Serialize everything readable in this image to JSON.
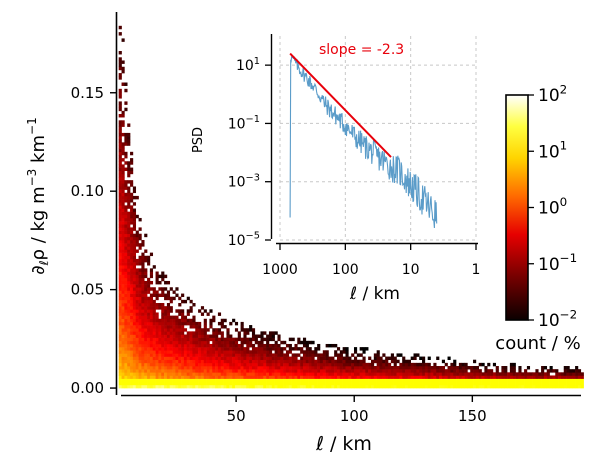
{
  "chart_data": [
    {
      "type": "heatmap",
      "description_note": "2D histogram of density gradient versus length scale",
      "xlabel": "ℓ / km",
      "ylabel_parts": {
        "main": "∂",
        "sub": "ℓ",
        "rho": "ρ",
        "unit": " / kg m",
        "exp1": "−3",
        "mid": " km",
        "exp2": "−1"
      },
      "xlim": [
        0,
        196
      ],
      "ylim": [
        -0.002,
        0.19
      ],
      "xticks": [
        50,
        100,
        150
      ],
      "xtick_labels": [
        "50",
        "100",
        "150"
      ],
      "yticks": [
        0.0,
        0.05,
        0.1,
        0.15
      ],
      "ytick_labels": [
        "0.00",
        "0.05",
        "0.10",
        "0.15"
      ],
      "envelope": {
        "x": [
          1,
          2,
          4,
          6,
          8,
          10,
          15,
          20,
          30,
          40,
          50,
          70,
          100,
          150,
          196
        ],
        "ymax": [
          0.188,
          0.165,
          0.14,
          0.115,
          0.095,
          0.082,
          0.065,
          0.055,
          0.045,
          0.038,
          0.033,
          0.026,
          0.02,
          0.013,
          0.01
        ]
      },
      "colorbar": {
        "scale": "log",
        "range": [
          0.01,
          100
        ],
        "ticks": [
          0.01,
          0.1,
          1,
          10,
          100
        ],
        "tick_labels": [
          {
            "base": "10",
            "exp": "−2"
          },
          {
            "base": "10",
            "exp": "−1"
          },
          {
            "base": "10",
            "exp": "0"
          },
          {
            "base": "10",
            "exp": "1"
          },
          {
            "base": "10",
            "exp": "2"
          }
        ],
        "label": "count / %",
        "colormap": "hot"
      }
    },
    {
      "type": "line",
      "ylabel": "PSD",
      "xlabel": "ℓ / km",
      "xscale": "log",
      "yscale": "log",
      "x_reversed": true,
      "xlim": [
        1000,
        1
      ],
      "ylim": [
        1e-05,
        100
      ],
      "xticks": [
        1000,
        100,
        10,
        1
      ],
      "xtick_labels": [
        "1000",
        "100",
        "10",
        "1"
      ],
      "yticks": [
        1e-05,
        0.001,
        0.1,
        10
      ],
      "ytick_labels": [
        {
          "base": "10",
          "exp": "−5"
        },
        {
          "base": "10",
          "exp": "−3"
        },
        {
          "base": "10",
          "exp": "−1"
        },
        {
          "base": "10",
          "exp": "1"
        }
      ],
      "grid": true,
      "series": [
        {
          "color": "#5b9cc9",
          "x": [
            700,
            500,
            300,
            200,
            150,
            100,
            70,
            50,
            30,
            20,
            15,
            10,
            7,
            5,
            4
          ],
          "y": [
            25,
            8,
            2,
            0.5,
            0.25,
            0.1,
            0.04,
            0.02,
            0.008,
            0.004,
            0.003,
            0.001,
            0.0004,
            0.00015,
            8e-05
          ]
        }
      ],
      "fit_line": {
        "color": "#e8000b",
        "x": [
          700,
          20
        ],
        "y": [
          25,
          0.007
        ],
        "annotation": "slope = -2.3"
      }
    }
  ]
}
